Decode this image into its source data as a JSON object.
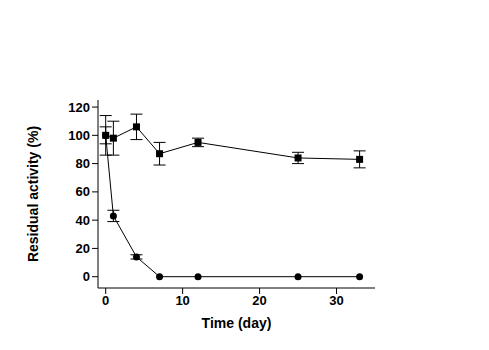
{
  "chart_data": {
    "type": "line",
    "x_label": "Time (day)",
    "y_label": "Residual activity (%)",
    "x": [
      0,
      1,
      4,
      7,
      12,
      25,
      33
    ],
    "series": [
      {
        "color": "#000000",
        "marker": "square",
        "values": [
          100,
          98,
          106,
          87,
          95,
          84,
          83
        ],
        "errors": [
          14,
          12,
          9,
          8,
          3,
          4,
          6
        ]
      },
      {
        "color": "#000000",
        "marker": "circle",
        "values": [
          100,
          43,
          14,
          0,
          0,
          0,
          0
        ],
        "errors": [
          6,
          4,
          1.5,
          0,
          0,
          0,
          0
        ]
      }
    ],
    "xlim": [
      -1,
      35
    ],
    "xticks": [
      0,
      10,
      20,
      30
    ],
    "ylim": [
      -8,
      125
    ],
    "yticks": [
      0,
      20,
      40,
      60,
      80,
      100,
      120
    ],
    "grid": false
  }
}
